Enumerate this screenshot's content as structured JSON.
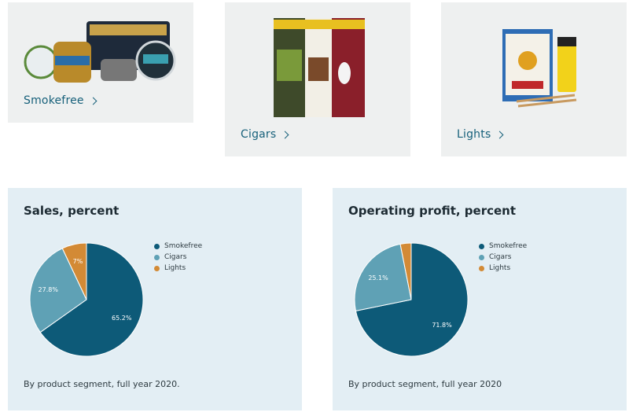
{
  "colors": {
    "smokefree": "#0d5a78",
    "cigars": "#5fa1b5",
    "lights": "#d38a35",
    "card_bg": "#eef0f0",
    "panel_bg": "#e3eef4"
  },
  "products": [
    {
      "label": "Smokefree",
      "image_icon": "smokefree-tins-image"
    },
    {
      "label": "Cigars",
      "image_icon": "cigar-packs-image"
    },
    {
      "label": "Lights",
      "image_icon": "matches-lighter-image"
    }
  ],
  "chart_data": [
    {
      "type": "pie",
      "title": "Sales, percent",
      "categories": [
        "Smokefree",
        "Cigars",
        "Lights"
      ],
      "values": [
        65.2,
        27.8,
        7
      ],
      "labels": [
        "65.2%",
        "27.8%",
        "7%"
      ],
      "legend": [
        "Smokefree",
        "Cigars",
        "Lights"
      ],
      "legend_position": "top-right",
      "footnote": "By product segment, full year 2020."
    },
    {
      "type": "pie",
      "title": "Operating profit, percent",
      "categories": [
        "Smokefree",
        "Cigars",
        "Lights"
      ],
      "values": [
        71.8,
        25.1,
        3.1
      ],
      "labels": [
        "71.8%",
        "25.1%",
        ""
      ],
      "legend": [
        "Smokefree",
        "Cigars",
        "Lights"
      ],
      "legend_position": "top-right",
      "footnote": "By product segment, full year 2020"
    }
  ]
}
